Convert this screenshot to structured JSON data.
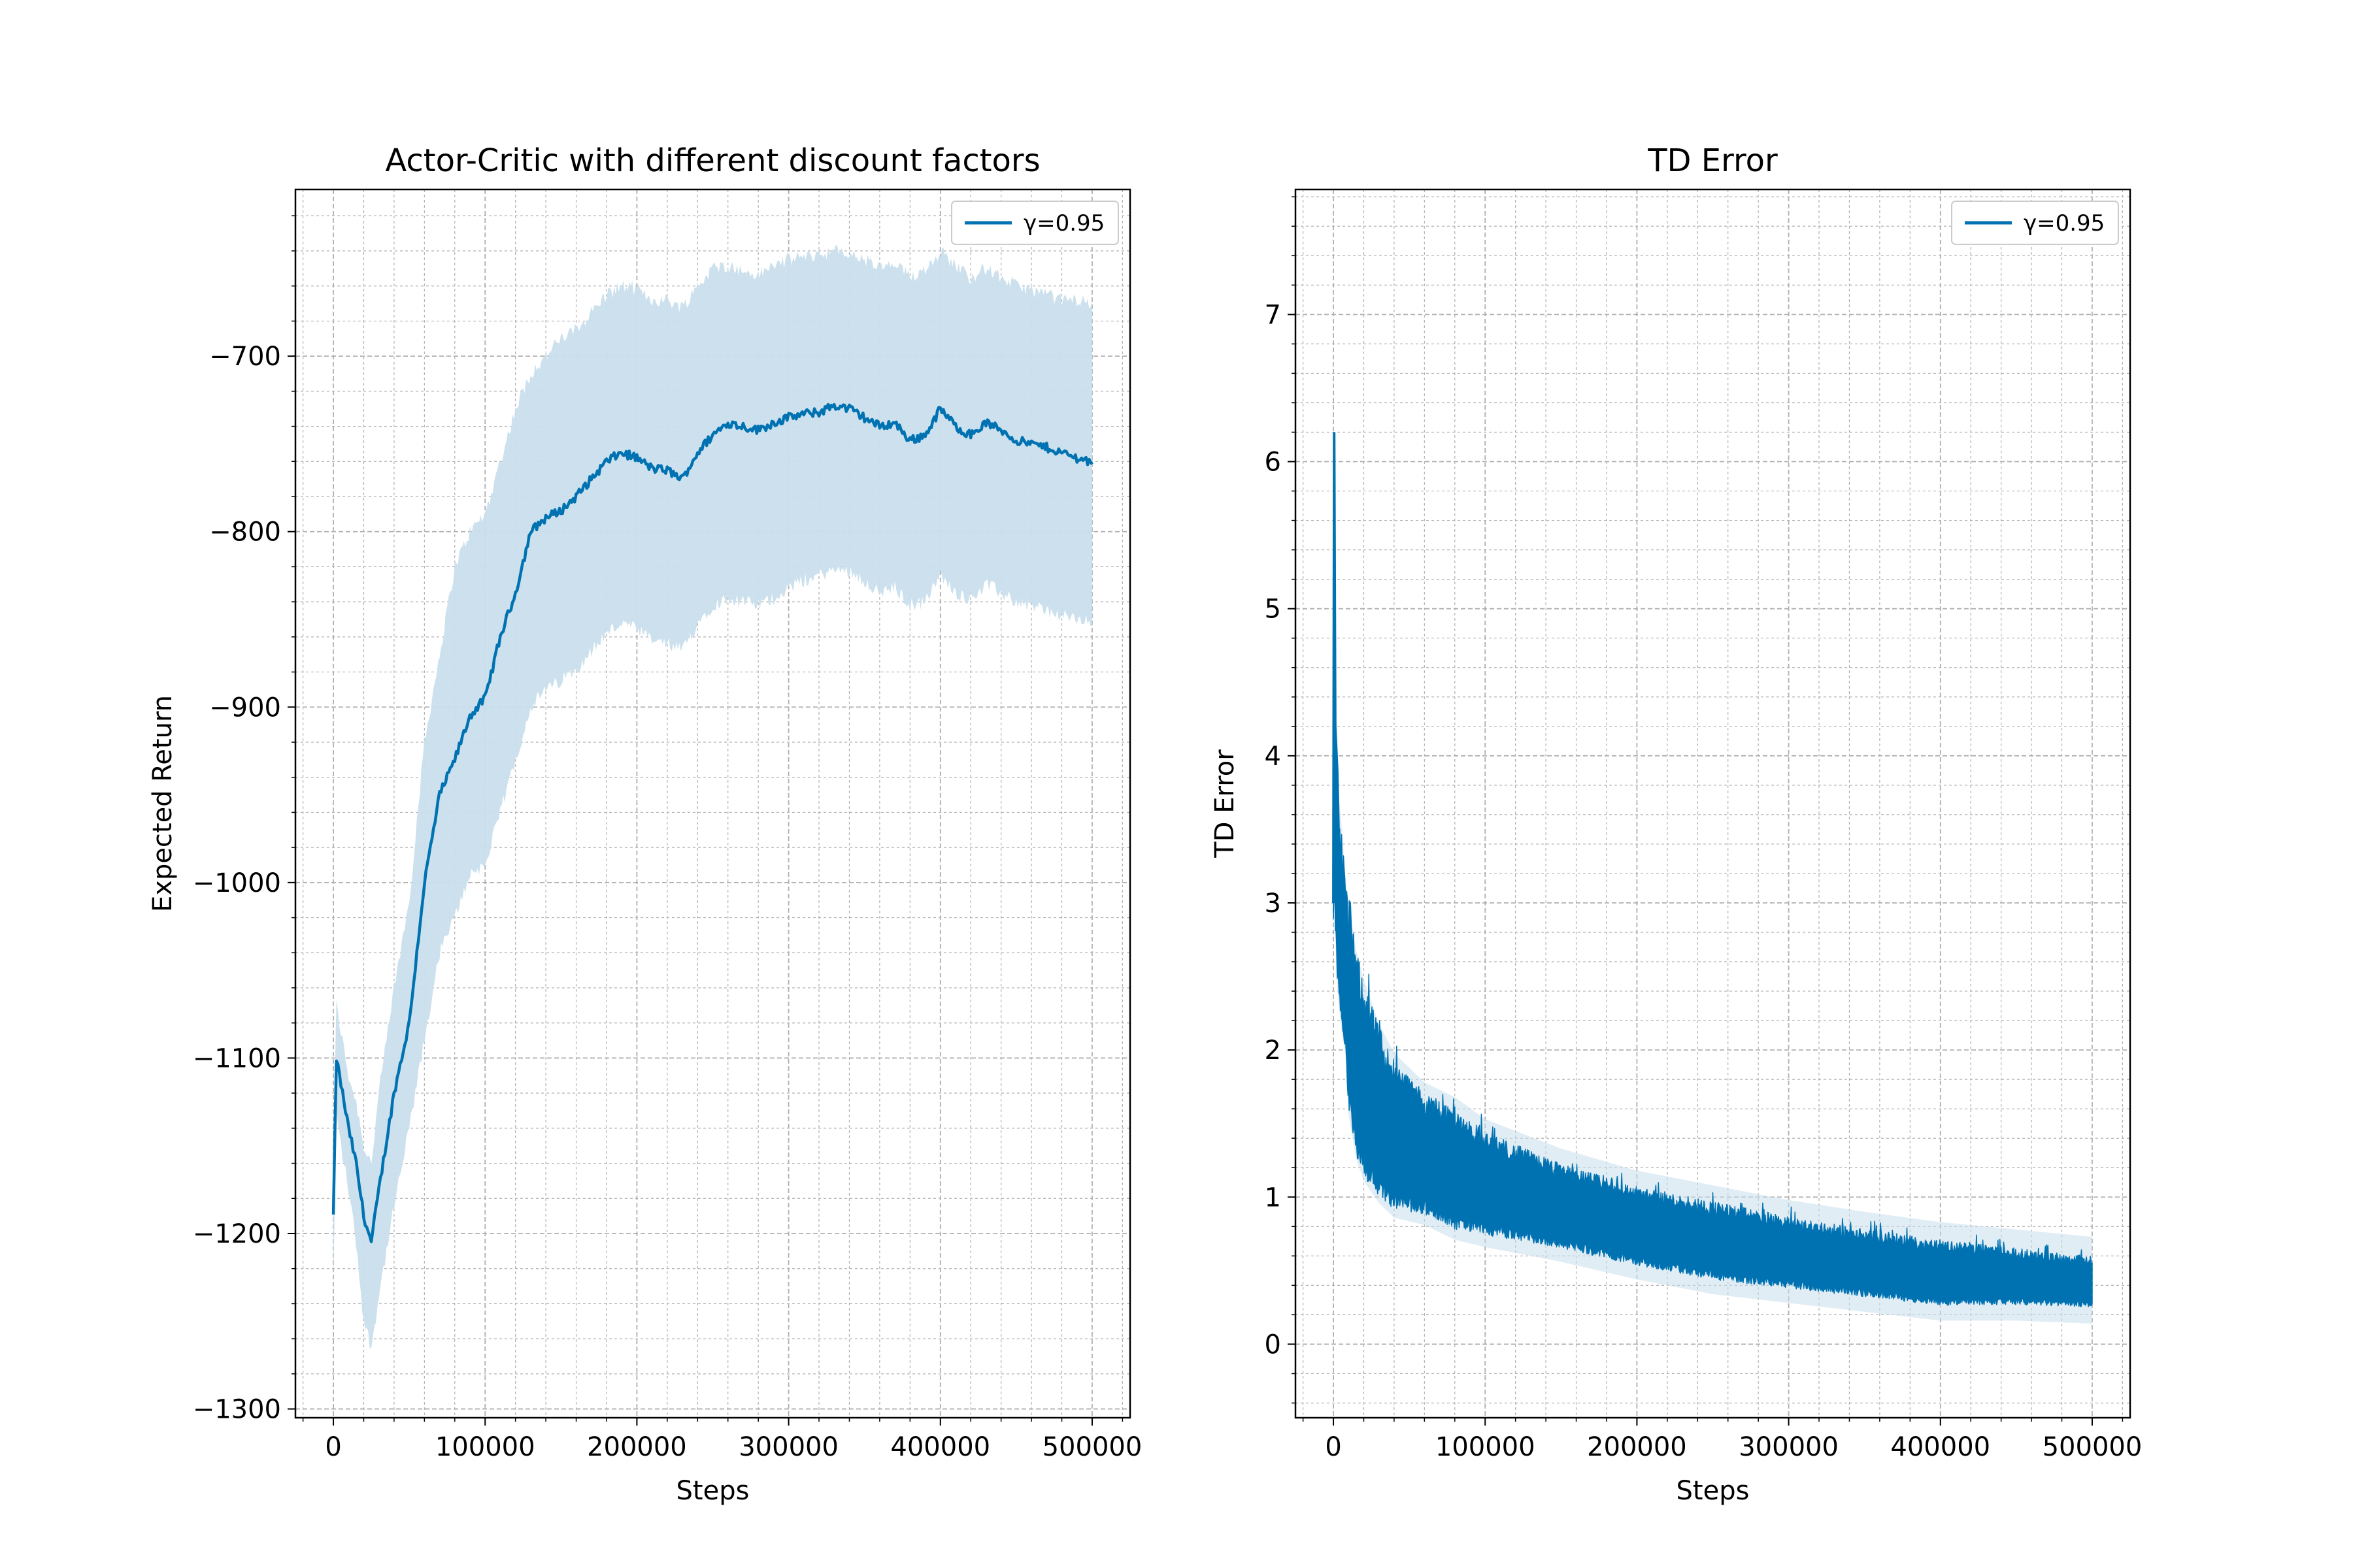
{
  "colors": {
    "series": "#0072b2",
    "band": "#c9dfec",
    "grid": "#b0b0b0",
    "text": "#000000",
    "background": "#ffffff"
  },
  "chart_data": [
    {
      "type": "line",
      "title": "Actor-Critic with different discount factors",
      "xlabel": "Steps",
      "ylabel": "Expected Return",
      "xlim": [
        -25000,
        525000
      ],
      "ylim": [
        -1305,
        -605
      ],
      "xticks": [
        0,
        100000,
        200000,
        300000,
        400000,
        500000
      ],
      "xtick_labels": [
        "0",
        "100000",
        "200000",
        "300000",
        "400000",
        "500000"
      ],
      "yticks": [
        -1300,
        -1200,
        -1100,
        -1000,
        -900,
        -800,
        -700
      ],
      "ytick_labels": [
        "−1300",
        "−1200",
        "−1100",
        "−1000",
        "−900",
        "−800",
        "−700"
      ],
      "grid": true,
      "minor_grid": true,
      "legend_position": "upper right",
      "series": [
        {
          "name": "γ=0.95",
          "shaded_band": "std",
          "x": [
            0,
            2000,
            5000,
            10000,
            15000,
            20000,
            25000,
            30000,
            40000,
            50000,
            60000,
            70000,
            80000,
            90000,
            100000,
            110000,
            120000,
            130000,
            140000,
            150000,
            160000,
            170000,
            180000,
            190000,
            200000,
            210000,
            220000,
            230000,
            240000,
            250000,
            260000,
            270000,
            280000,
            290000,
            300000,
            310000,
            320000,
            330000,
            340000,
            350000,
            360000,
            370000,
            380000,
            390000,
            400000,
            410000,
            420000,
            430000,
            440000,
            450000,
            460000,
            470000,
            480000,
            490000,
            500000
          ],
          "mean": [
            -1190,
            -1100,
            -1115,
            -1140,
            -1160,
            -1190,
            -1205,
            -1175,
            -1120,
            -1080,
            -1000,
            -950,
            -930,
            -905,
            -895,
            -860,
            -835,
            -800,
            -792,
            -788,
            -780,
            -770,
            -760,
            -755,
            -758,
            -764,
            -765,
            -770,
            -755,
            -745,
            -738,
            -740,
            -742,
            -738,
            -735,
            -733,
            -732,
            -728,
            -730,
            -735,
            -740,
            -738,
            -748,
            -745,
            -730,
            -740,
            -745,
            -738,
            -742,
            -748,
            -750,
            -752,
            -755,
            -758,
            -760
          ],
          "upper": [
            -1150,
            -1070,
            -1085,
            -1110,
            -1125,
            -1150,
            -1160,
            -1120,
            -1060,
            -1010,
            -920,
            -870,
            -820,
            -800,
            -790,
            -760,
            -730,
            -710,
            -700,
            -690,
            -685,
            -675,
            -665,
            -660,
            -662,
            -668,
            -668,
            -672,
            -660,
            -650,
            -648,
            -652,
            -654,
            -648,
            -645,
            -643,
            -642,
            -640,
            -642,
            -645,
            -650,
            -648,
            -655,
            -650,
            -640,
            -648,
            -655,
            -650,
            -655,
            -660,
            -662,
            -665,
            -668,
            -668,
            -670
          ],
          "lower": [
            -1230,
            -1130,
            -1150,
            -1175,
            -1205,
            -1250,
            -1265,
            -1235,
            -1185,
            -1140,
            -1090,
            -1040,
            -1020,
            -995,
            -990,
            -960,
            -930,
            -900,
            -890,
            -885,
            -878,
            -868,
            -858,
            -852,
            -856,
            -862,
            -864,
            -868,
            -852,
            -842,
            -838,
            -840,
            -842,
            -838,
            -832,
            -828,
            -825,
            -822,
            -822,
            -828,
            -835,
            -832,
            -842,
            -840,
            -825,
            -835,
            -838,
            -830,
            -835,
            -840,
            -842,
            -845,
            -848,
            -850,
            -852
          ]
        }
      ]
    },
    {
      "type": "line",
      "title": "TD Error",
      "xlabel": "Steps",
      "ylabel": "TD Error",
      "xlim": [
        -25000,
        525000
      ],
      "ylim": [
        -0.5,
        7.85
      ],
      "xticks": [
        0,
        100000,
        200000,
        300000,
        400000,
        500000
      ],
      "xtick_labels": [
        "0",
        "100000",
        "200000",
        "300000",
        "400000",
        "500000"
      ],
      "yticks": [
        0,
        1,
        2,
        3,
        4,
        5,
        6,
        7
      ],
      "ytick_labels": [
        "0",
        "1",
        "2",
        "3",
        "4",
        "5",
        "6",
        "7"
      ],
      "grid": true,
      "minor_grid": true,
      "legend_position": "upper right",
      "series": [
        {
          "name": "γ=0.95",
          "style": "noisy envelope",
          "x": [
            0,
            500,
            1000,
            2000,
            3000,
            5000,
            8000,
            10000,
            15000,
            20000,
            30000,
            40000,
            60000,
            80000,
            100000,
            150000,
            200000,
            250000,
            300000,
            350000,
            400000,
            450000,
            500000
          ],
          "upper": [
            3.0,
            6.2,
            4.5,
            3.8,
            3.6,
            3.4,
            3.0,
            2.8,
            2.5,
            2.3,
            2.0,
            1.8,
            1.6,
            1.5,
            1.35,
            1.15,
            1.0,
            0.9,
            0.8,
            0.72,
            0.65,
            0.6,
            0.55
          ],
          "lower": [
            2.9,
            3.3,
            3.0,
            2.7,
            2.5,
            2.3,
            2.1,
            1.7,
            1.4,
            1.25,
            1.1,
            1.0,
            0.95,
            0.85,
            0.8,
            0.7,
            0.58,
            0.48,
            0.42,
            0.36,
            0.3,
            0.3,
            0.28
          ]
        }
      ]
    }
  ]
}
